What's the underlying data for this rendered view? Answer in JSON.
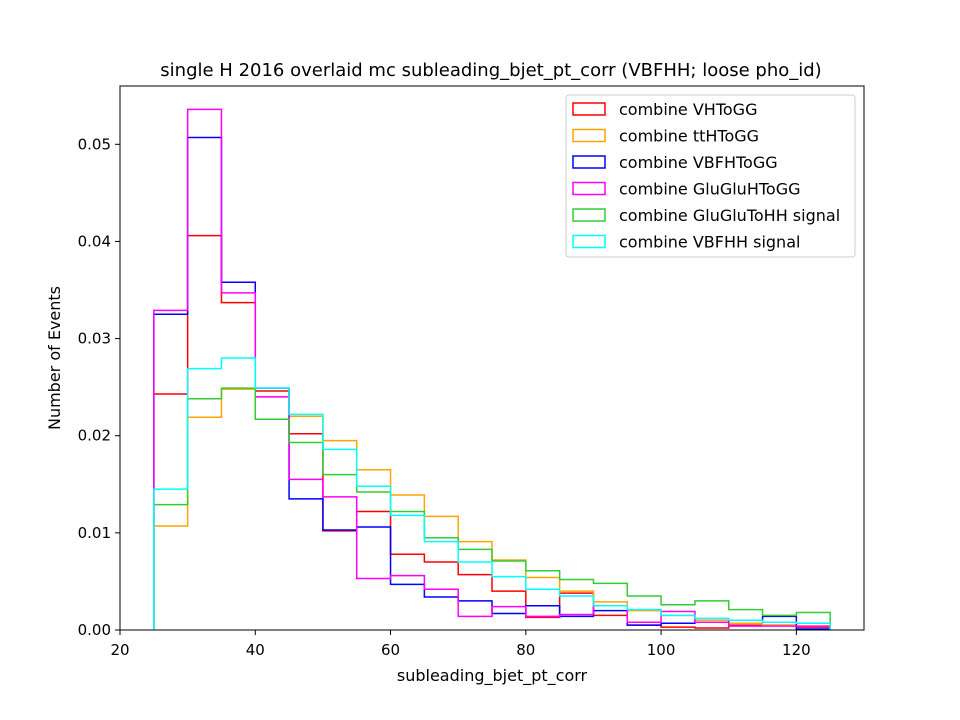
{
  "chart_data": {
    "type": "histogram",
    "title": "single H 2016 overlaid mc subleading_bjet_pt_corr (VBFHH; loose pho_id)",
    "xlabel": "subleading_bjet_pt_corr",
    "ylabel": "Number of Events",
    "xlim": [
      20,
      130
    ],
    "ylim": [
      0,
      0.056
    ],
    "xticks": [
      20,
      40,
      60,
      80,
      100,
      120
    ],
    "xtick_labels": [
      "20",
      "40",
      "60",
      "80",
      "100",
      "120"
    ],
    "yticks": [
      0,
      0.01,
      0.02,
      0.03,
      0.04,
      0.05
    ],
    "ytick_labels": [
      "0.00",
      "0.01",
      "0.02",
      "0.03",
      "0.04",
      "0.05"
    ],
    "bin_edges": [
      25,
      30,
      35,
      40,
      45,
      50,
      55,
      60,
      65,
      70,
      75,
      80,
      85,
      90,
      95,
      100,
      105,
      110,
      115,
      120,
      125
    ],
    "legend_position": "upper right",
    "series": [
      {
        "name": "combine VHToGG",
        "color": "#ff0000",
        "values": [
          0.0243,
          0.0406,
          0.0337,
          0.0246,
          0.0202,
          0.0102,
          0.0122,
          0.0078,
          0.007,
          0.0057,
          0.004,
          0.0013,
          0.0038,
          0.0015,
          0.0005,
          0.0003,
          0.0002,
          0.0005,
          0.0005,
          0.0003
        ]
      },
      {
        "name": "combine ttHToGG",
        "color": "#ffa500",
        "values": [
          0.0107,
          0.0219,
          0.0248,
          0.024,
          0.022,
          0.0195,
          0.0165,
          0.0139,
          0.0117,
          0.0091,
          0.0072,
          0.0054,
          0.004,
          0.0029,
          0.002,
          0.0015,
          0.001,
          0.0007,
          0.0005,
          0.0004
        ]
      },
      {
        "name": "combine VBFHToGG",
        "color": "#0000ff",
        "values": [
          0.0325,
          0.0507,
          0.0358,
          0.0249,
          0.0135,
          0.0103,
          0.0106,
          0.0047,
          0.0034,
          0.003,
          0.0017,
          0.0025,
          0.0014,
          0.002,
          0.0005,
          0.0007,
          0.0008,
          0.001,
          0.0014,
          0.0001
        ]
      },
      {
        "name": "combine GluGluHToGG",
        "color": "#ff00ff",
        "values": [
          0.0329,
          0.0536,
          0.0347,
          0.024,
          0.0155,
          0.0137,
          0.0053,
          0.0056,
          0.0042,
          0.0014,
          0.0024,
          0.0014,
          0.0016,
          0.0025,
          0.0008,
          0.0019,
          0.0008,
          0.0004,
          0.0004,
          0.0004
        ]
      },
      {
        "name": "combine GluGluToHH signal",
        "color": "#32cd32",
        "values": [
          0.0129,
          0.0238,
          0.0249,
          0.0217,
          0.0193,
          0.016,
          0.0142,
          0.0122,
          0.0095,
          0.0083,
          0.0071,
          0.0061,
          0.0052,
          0.0048,
          0.0035,
          0.0026,
          0.003,
          0.0021,
          0.0015,
          0.0018
        ]
      },
      {
        "name": "combine VBFHH signal",
        "color": "#00ffff",
        "values": [
          0.0145,
          0.0269,
          0.028,
          0.0249,
          0.0222,
          0.0186,
          0.0148,
          0.0118,
          0.0091,
          0.007,
          0.0055,
          0.0042,
          0.0035,
          0.0025,
          0.0021,
          0.0015,
          0.0012,
          0.001,
          0.0008,
          0.0007
        ]
      }
    ]
  }
}
